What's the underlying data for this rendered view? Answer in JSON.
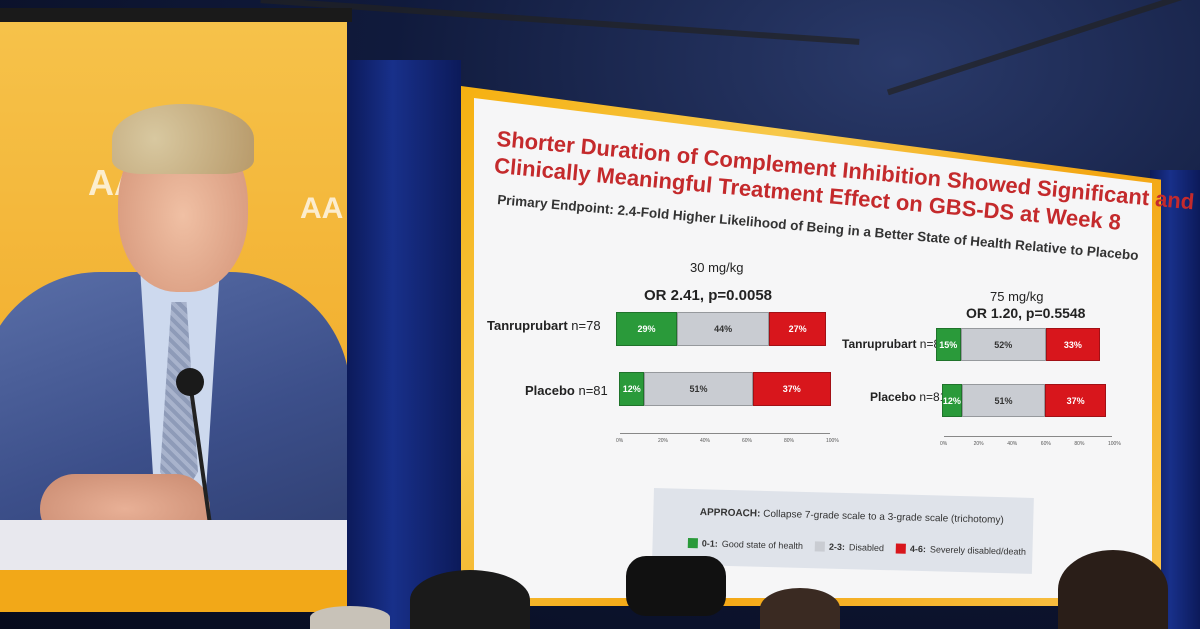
{
  "left_screen": {
    "logo_fragment_1": "AA",
    "logo_fragment_2": "AA"
  },
  "slide": {
    "title_line1": "Shorter Duration of Complement Inhibition Showed Significant and",
    "title_line2": "Clinically Meaningful Treatment Effect on GBS-DS at Week 8",
    "subtitle": "Primary Endpoint: 2.4-Fold Higher Likelihood of Being in a Better State of Health Relative to Placebo",
    "colors": {
      "green": "#2a9a3a",
      "gray": "#c9ccd2",
      "red": "#d8161c",
      "title": "#c42a2c"
    }
  },
  "chart_data": [
    {
      "type": "bar",
      "stacked": true,
      "orientation": "horizontal",
      "title": "30 mg/kg",
      "subtitle": "OR 2.41, p=0.0058",
      "categories": [
        "Tanruprubart",
        "Placebo"
      ],
      "category_n": [
        "n=78",
        "n=81"
      ],
      "series": [
        {
          "name": "0-1: Good state of health",
          "values": [
            29,
            12
          ]
        },
        {
          "name": "2-3: Disabled",
          "values": [
            44,
            51
          ]
        },
        {
          "name": "4-6: Severely disabled/death",
          "values": [
            27,
            37
          ]
        }
      ],
      "xlim": [
        0,
        100
      ],
      "xticks": [
        "0%",
        "20%",
        "40%",
        "60%",
        "80%",
        "100%"
      ]
    },
    {
      "type": "bar",
      "stacked": true,
      "orientation": "horizontal",
      "title": "75 mg/kg",
      "subtitle": "OR 1.20, p=0.5548",
      "categories": [
        "Tanruprubart",
        "Placebo"
      ],
      "category_n": [
        "n=81",
        "n=81"
      ],
      "series": [
        {
          "name": "0-1: Good state of health",
          "values": [
            15,
            12
          ]
        },
        {
          "name": "2-3: Disabled",
          "values": [
            52,
            51
          ]
        },
        {
          "name": "4-6: Severely disabled/death",
          "values": [
            33,
            37
          ]
        }
      ],
      "xlim": [
        0,
        100
      ],
      "xticks": [
        "0%",
        "20%",
        "40%",
        "60%",
        "80%",
        "100%"
      ]
    }
  ],
  "approach": {
    "label": "APPROACH:",
    "text": "Collapse 7-grade scale to a 3-grade scale (trichotomy)"
  },
  "legend": [
    {
      "key": "0-1:",
      "label": "Good state of health",
      "color": "#2a9a3a"
    },
    {
      "key": "2-3:",
      "label": "Disabled",
      "color": "#c9ccd2"
    },
    {
      "key": "4-6:",
      "label": "Severely disabled/death",
      "color": "#d8161c"
    }
  ]
}
